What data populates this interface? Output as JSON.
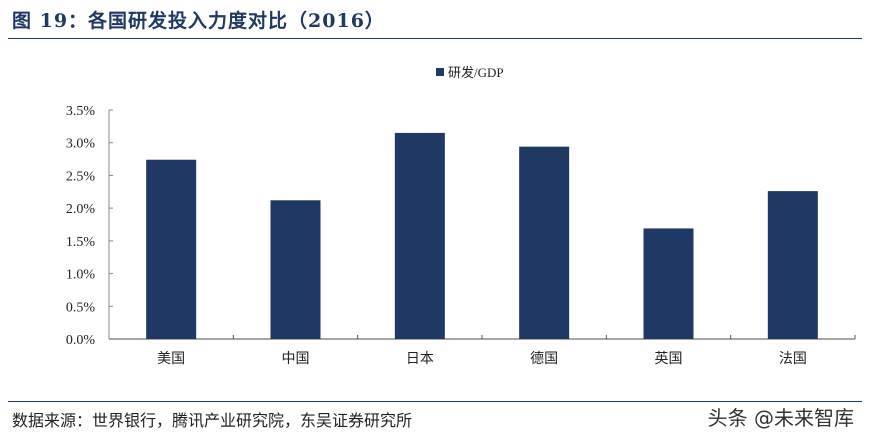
{
  "title": "图 19：各国研发投入力度对比（2016）",
  "source": "数据来源：世界银行，腾讯产业研究院，东吴证券研究所",
  "watermark": "头条 @未来智库",
  "chart_data": {
    "type": "bar",
    "categories": [
      "美国",
      "中国",
      "日本",
      "德国",
      "英国",
      "法国"
    ],
    "series": [
      {
        "name": "研发/GDP",
        "values": [
          2.74,
          2.12,
          3.15,
          2.94,
          1.69,
          2.26
        ],
        "color": "#203864"
      }
    ],
    "yticks": [
      "0.0%",
      "0.5%",
      "1.0%",
      "1.5%",
      "2.0%",
      "2.5%",
      "3.0%",
      "3.5%"
    ],
    "ylim": [
      0,
      3.5
    ],
    "yunit": "%",
    "grid": false,
    "legend": "top-center"
  }
}
